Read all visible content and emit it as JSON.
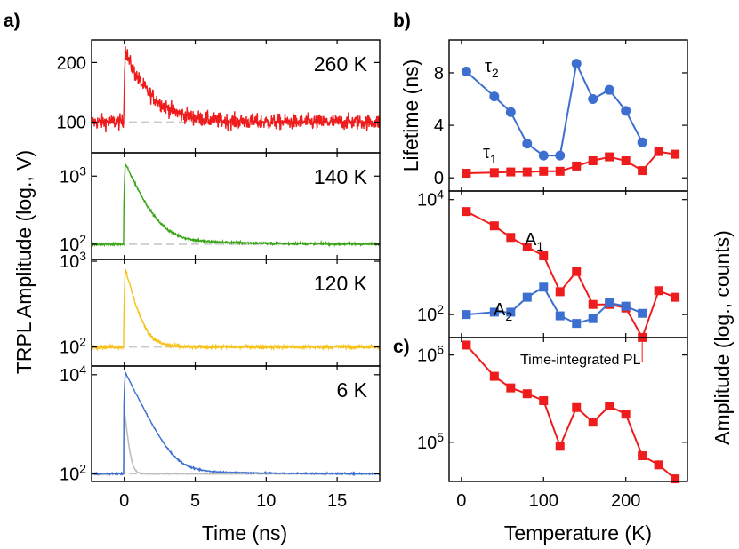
{
  "colors": {
    "red": "#ee1c1c",
    "green": "#3aa517",
    "yellow": "#f7c21a",
    "blue": "#3c6fd0",
    "gray": "#bdbdbd",
    "baseline": "#c8c8c8"
  },
  "panel_labels": {
    "a": "a)",
    "b": "b)",
    "c": "c)"
  },
  "chart_data": [
    {
      "id": "trpl",
      "type": "line",
      "title": "a)",
      "xlabel": "Time (ns)",
      "ylabel": "TRPL Amplitude (log., V)",
      "xlim": [
        -2.3,
        18
      ],
      "xticks": [
        0,
        5,
        10,
        15
      ],
      "xticklabels": [
        "0",
        "5",
        "10",
        "15"
      ],
      "panels": [
        {
          "temperature": "260 K",
          "color": "red",
          "ylim": [
            70,
            260
          ],
          "peak": 240,
          "baseline": 100,
          "tau": 1.6,
          "noise": 0.09,
          "yticks": [
            {
              "value": 100,
              "base": "100",
              "exp": ""
            },
            {
              "value": 200,
              "base": "200",
              "exp": ""
            }
          ]
        },
        {
          "temperature": "140 K",
          "color": "green",
          "ylim": [
            60,
            2200
          ],
          "peak": 1500,
          "baseline": 100,
          "tau": 0.9,
          "noise": 0.04,
          "yticks": [
            {
              "value": 100,
              "base": "10",
              "exp": "2"
            },
            {
              "value": 1000,
              "base": "10",
              "exp": "3"
            }
          ]
        },
        {
          "temperature": "120 K",
          "color": "yellow",
          "ylim": [
            60,
            1050
          ],
          "peak": 820,
          "baseline": 100,
          "tau": 0.6,
          "noise": 0.05,
          "yticks": [
            {
              "value": 100,
              "base": "10",
              "exp": "2"
            },
            {
              "value": 1000,
              "base": "10",
              "exp": "3"
            }
          ]
        },
        {
          "temperature": "6 K",
          "color": "blue",
          "ylim": [
            70,
            15000
          ],
          "peak": 11000,
          "baseline": 100,
          "tau": 0.75,
          "noise": 0.03,
          "yticks": [
            {
              "value": 100,
              "base": "10",
              "exp": "2"
            },
            {
              "value": 10000,
              "base": "10",
              "exp": "4"
            }
          ]
        }
      ]
    },
    {
      "id": "lifetime",
      "type": "line",
      "title": "b)",
      "xlabel": "",
      "ylabel": "Lifetime (ns)",
      "xlim": [
        -15,
        275
      ],
      "ylim": [
        -1,
        10.5
      ],
      "yticks": [
        0,
        4,
        8
      ],
      "yticklabels": [
        "0",
        "4",
        "8"
      ],
      "series": [
        {
          "name": "τ2",
          "label_base": "τ",
          "label_sub": "2",
          "color": "blue",
          "marker": "circle",
          "x": [
            6,
            40,
            60,
            80,
            100,
            120,
            140,
            160,
            180,
            200,
            220
          ],
          "y": [
            8.1,
            6.2,
            5.0,
            2.6,
            1.7,
            1.7,
            8.7,
            6.0,
            6.7,
            5.1,
            2.7
          ]
        },
        {
          "name": "τ1",
          "label_base": "τ",
          "label_sub": "1",
          "color": "red",
          "marker": "square",
          "x": [
            6,
            40,
            60,
            80,
            100,
            120,
            140,
            160,
            180,
            200,
            220,
            240,
            260
          ],
          "y": [
            0.35,
            0.4,
            0.45,
            0.45,
            0.5,
            0.5,
            0.9,
            1.3,
            1.6,
            1.3,
            0.55,
            2.0,
            1.8
          ]
        }
      ]
    },
    {
      "id": "amplitude",
      "type": "line",
      "title": "",
      "xlabel": "",
      "ylabel": "Amplitude (log., counts)",
      "xlim": [
        -15,
        275
      ],
      "ylim_log": [
        1.6,
        4.15
      ],
      "yticks": [
        {
          "value": 100,
          "base": "10",
          "exp": "2"
        },
        {
          "value": 10000,
          "base": "10",
          "exp": "4"
        }
      ],
      "series": [
        {
          "name": "A1",
          "label_base": "A",
          "label_sub": "1",
          "color": "red",
          "marker": "square",
          "x": [
            6,
            40,
            60,
            80,
            100,
            120,
            140,
            160,
            180,
            200,
            220,
            240,
            260
          ],
          "y": [
            6200,
            3500,
            2200,
            1500,
            1050,
            250,
            560,
            150,
            150,
            130,
            40,
            260,
            200
          ],
          "errorbar": {
            "x": 220,
            "low": 15,
            "high": 40
          }
        },
        {
          "name": "A2",
          "label_base": "A",
          "label_sub": "2",
          "color": "blue",
          "marker": "square",
          "x": [
            6,
            40,
            60,
            80,
            100,
            120,
            140,
            160,
            180,
            200,
            220
          ],
          "y": [
            100,
            110,
            110,
            200,
            300,
            95,
            70,
            85,
            160,
            140,
            105
          ]
        }
      ]
    },
    {
      "id": "integrated",
      "type": "line",
      "title": "c)",
      "xlabel": "Temperature (K)",
      "ylabel": "",
      "xlim": [
        -15,
        275
      ],
      "ylim_log": [
        4.55,
        6.2
      ],
      "xticks": [
        0,
        100,
        200
      ],
      "xticklabels": [
        "0",
        "100",
        "200"
      ],
      "yticks": [
        {
          "value": 100000,
          "base": "10",
          "exp": "5"
        },
        {
          "value": 1000000,
          "base": "10",
          "exp": "6"
        }
      ],
      "annotation": "Time-integrated PL",
      "series": [
        {
          "name": "Time-integrated PL",
          "color": "red",
          "marker": "square",
          "x": [
            6,
            40,
            60,
            80,
            100,
            120,
            140,
            160,
            180,
            200,
            220,
            240,
            260
          ],
          "y": [
            1300000,
            570000,
            420000,
            360000,
            300000,
            90000,
            250000,
            170000,
            260000,
            210000,
            70000,
            55000,
            38000
          ]
        }
      ]
    }
  ]
}
